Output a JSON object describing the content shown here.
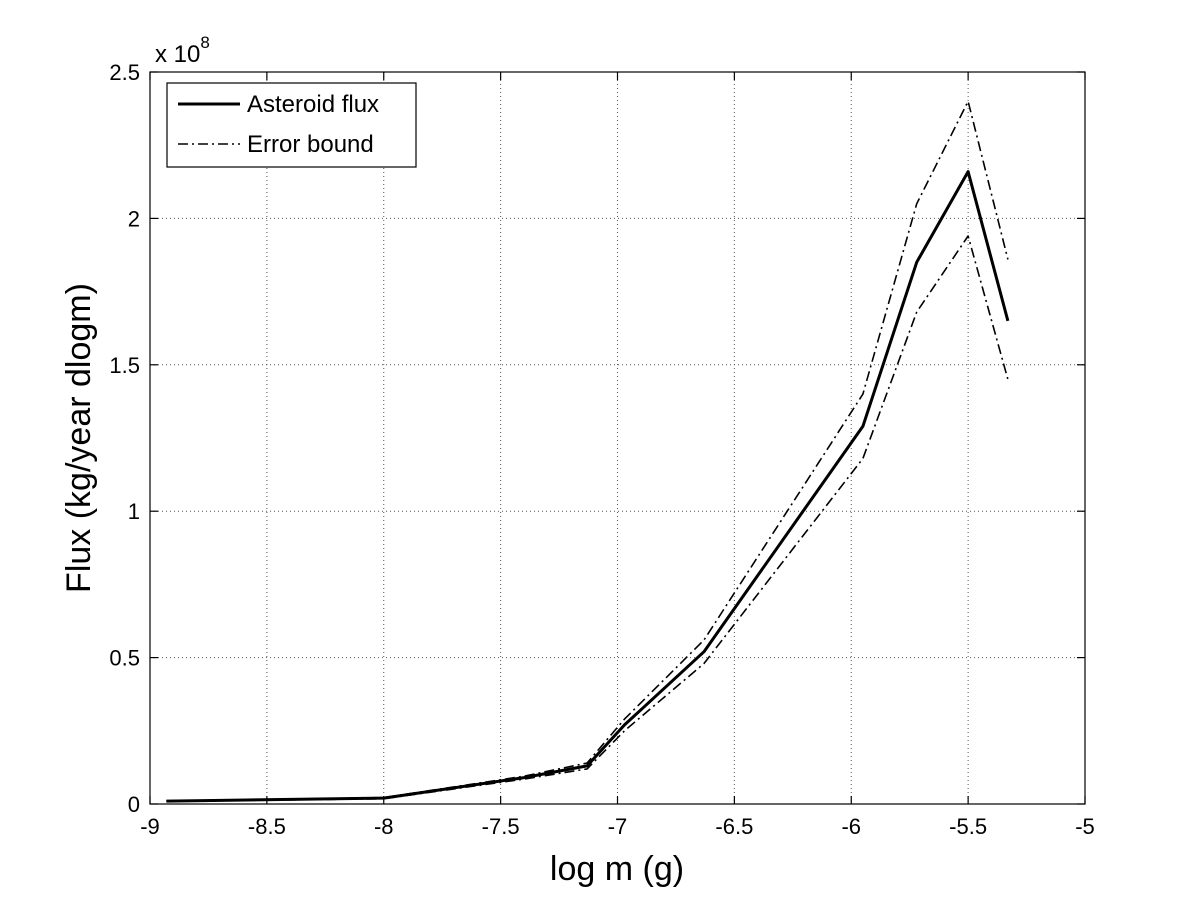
{
  "chart_data": {
    "type": "line",
    "xlabel": "log m (g)",
    "ylabel": "Flux (kg/year dlogm)",
    "xlim": [
      -9,
      -5
    ],
    "ylim": [
      0,
      2.5
    ],
    "y_multiplier": {
      "base": "x 10",
      "exponent": "8"
    },
    "x_ticks": [
      -9,
      -8.5,
      -8,
      -7.5,
      -7,
      -6.5,
      -6,
      -5.5,
      -5
    ],
    "x_tick_labels": [
      "-9",
      "-8.5",
      "-8",
      "-7.5",
      "-7",
      "-6.5",
      "-6",
      "-5.5",
      "-5"
    ],
    "y_ticks": [
      0,
      0.5,
      1,
      1.5,
      2,
      2.5
    ],
    "y_tick_labels": [
      "0",
      "0.5",
      "1",
      "1.5",
      "2",
      "2.5"
    ],
    "grid": true,
    "legend_position": "top-left",
    "legend": [
      {
        "label": "Asteroid flux",
        "style": "solid"
      },
      {
        "label": "Error bound",
        "style": "dash-dot"
      }
    ],
    "x": [
      -8.93,
      -8.73,
      -8.0,
      -7.4,
      -7.13,
      -6.97,
      -6.63,
      -5.95,
      -5.72,
      -5.5,
      -5.33
    ],
    "series": [
      {
        "name": "Asteroid flux",
        "style": "solid",
        "values": [
          0.01,
          0.012,
          0.02,
          0.09,
          0.13,
          0.27,
          0.52,
          1.29,
          1.85,
          2.16,
          1.65
        ]
      },
      {
        "name": "Error bound",
        "style": "dash-dot",
        "values": [
          0.01,
          0.013,
          0.022,
          0.095,
          0.14,
          0.29,
          0.56,
          1.4,
          2.05,
          2.4,
          1.86
        ]
      },
      {
        "name": "Error bound",
        "style": "dash-dot",
        "values": [
          0.01,
          0.011,
          0.018,
          0.085,
          0.12,
          0.25,
          0.48,
          1.18,
          1.68,
          1.94,
          1.45
        ]
      }
    ]
  }
}
